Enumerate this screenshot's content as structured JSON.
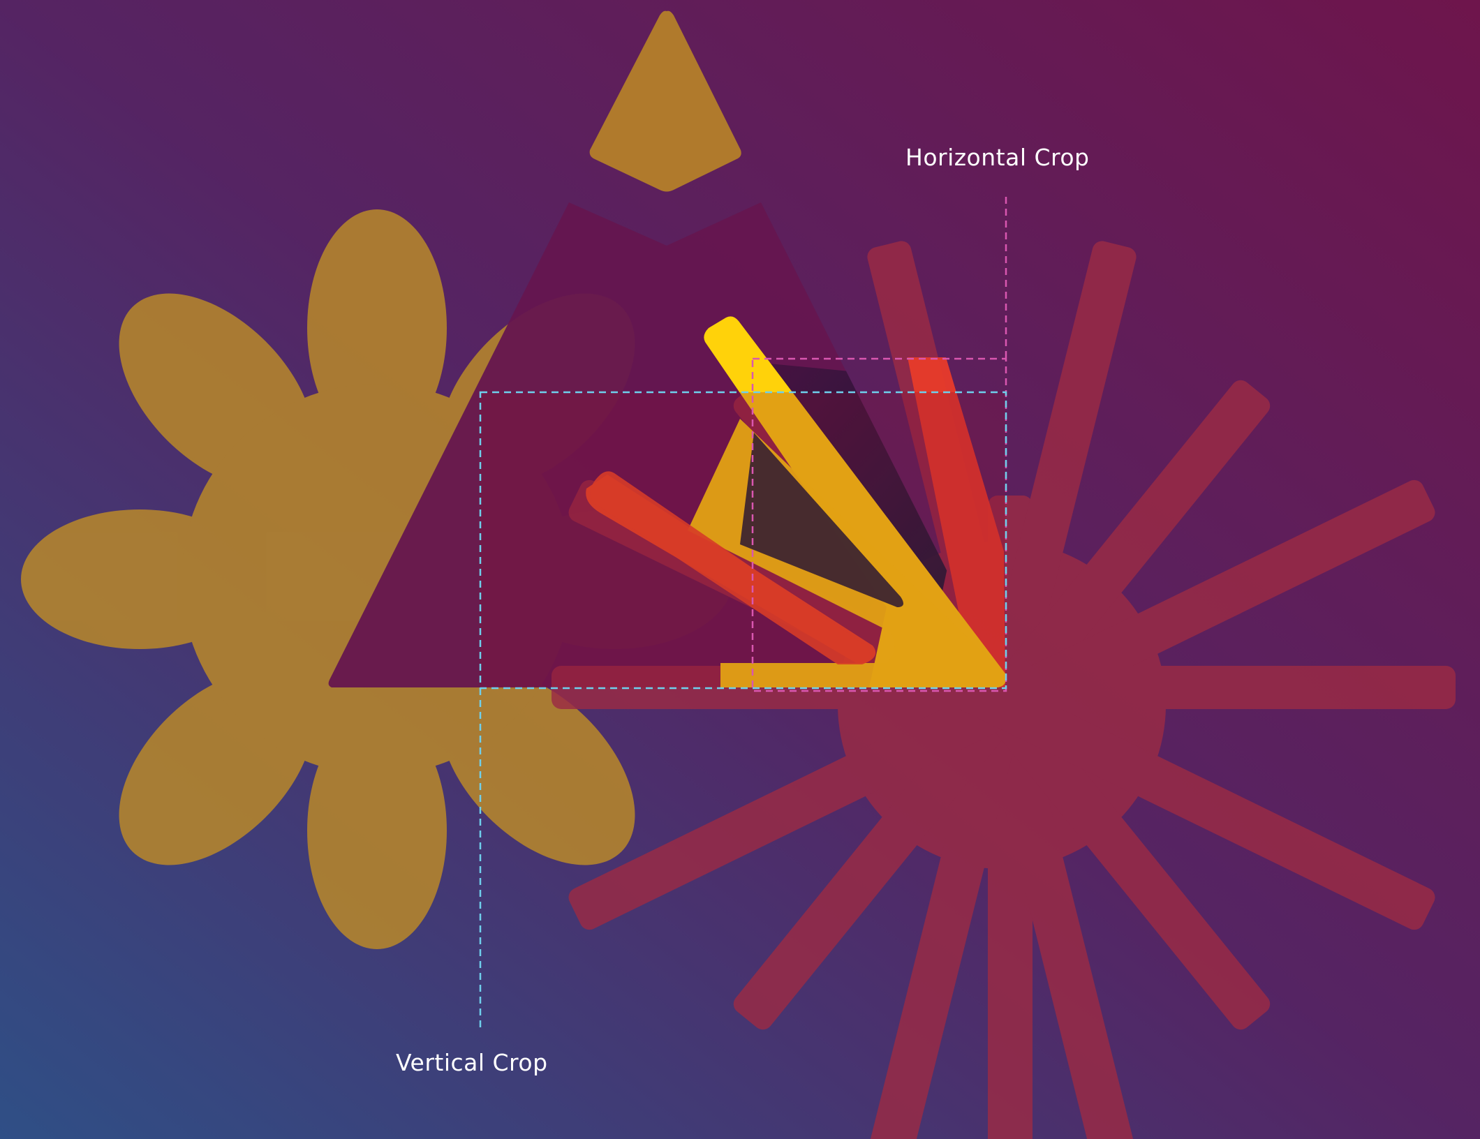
{
  "labels": {
    "horizontal_crop": "Horizontal Crop",
    "vertical_crop": "Vertical Crop"
  },
  "colors": {
    "background_top_right": "#6e154c",
    "background_mid": "#5a2260",
    "background_bottom_left": "#2f4f86",
    "flower": "#b6862c",
    "triangle": "#65164f",
    "triangle_dark": "#0d1b33",
    "burst": "#9b2b45",
    "burst_highlight": "#e83b2a",
    "arrow_yellow": "#ffd20a",
    "arrow_orange": "#ef4a24",
    "horizontal_crop_line": "#d957b0",
    "vertical_crop_line": "#6fd0ec"
  },
  "elements": [
    "flower",
    "triangle",
    "burst",
    "arrow",
    "horizontal-crop-frame",
    "vertical-crop-frame"
  ]
}
